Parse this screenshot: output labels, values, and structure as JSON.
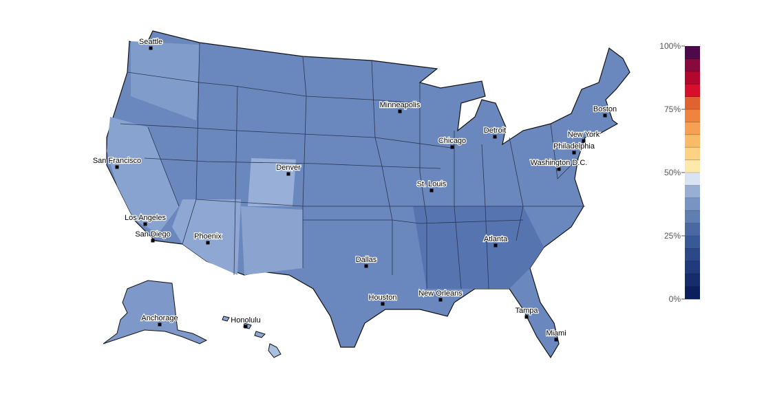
{
  "legend": {
    "range": [
      0,
      100
    ],
    "ticks": [
      {
        "value": 100,
        "label": "100%"
      },
      {
        "value": 75,
        "label": "75%"
      },
      {
        "value": 50,
        "label": "50%"
      },
      {
        "value": 25,
        "label": "25%"
      },
      {
        "value": 0,
        "label": "0%"
      }
    ],
    "colors": [
      "#0b1f5c",
      "#172c6b",
      "#213a7b",
      "#2b4889",
      "#385896",
      "#4a69a3",
      "#5f7fb2",
      "#7894c2",
      "#98afd3",
      "#d9e3f1",
      "#fde9a9",
      "#fbd383",
      "#f8bb67",
      "#f5a052",
      "#ef8441",
      "#e0622e",
      "#d6102b",
      "#b3082e",
      "#880a3c",
      "#4c0a4a"
    ]
  },
  "cities": [
    {
      "name": "Seattle"
    },
    {
      "name": "San Francisco"
    },
    {
      "name": "Los Angeles"
    },
    {
      "name": "San Diego"
    },
    {
      "name": "Phoenix"
    },
    {
      "name": "Denver"
    },
    {
      "name": "Minneapolis"
    },
    {
      "name": "Chicago"
    },
    {
      "name": "Detroit"
    },
    {
      "name": "St. Louis"
    },
    {
      "name": "Dallas"
    },
    {
      "name": "Houston"
    },
    {
      "name": "New Orleans"
    },
    {
      "name": "Atlanta"
    },
    {
      "name": "Tampa"
    },
    {
      "name": "Miami"
    },
    {
      "name": "Washington D.C."
    },
    {
      "name": "Philadelphia"
    },
    {
      "name": "New York"
    },
    {
      "name": "Boston"
    },
    {
      "name": "Anchorage"
    },
    {
      "name": "Honolulu"
    }
  ]
}
